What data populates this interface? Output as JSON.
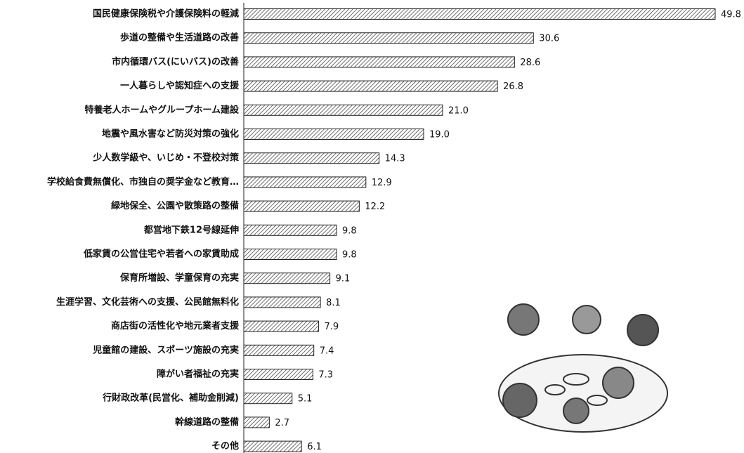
{
  "chart_data": {
    "type": "hbar",
    "categories": [
      "国民健康保険税や介護保険料の軽減",
      "歩道の整備や生活道路の改善",
      "市内循環バス(にいバス)の改善",
      "一人暮らしや認知症への支援",
      "特養老人ホームやグループホーム建設",
      "地震や風水害など防災対策の強化",
      "少人数学級や、いじめ・不登校対策",
      "学校給食費無償化、市独自の奨学金など教育…",
      "緑地保全、公園や散策路の整備",
      "都営地下鉄12号線延伸",
      "低家賃の公営住宅や若者への家賃助成",
      "保育所増設、学童保育の充実",
      "生涯学習、文化芸術への支援、公民館無料化",
      "商店街の活性化や地元業者支援",
      "児童館の建設、スポーツ施設の充実",
      "障がい者福祉の充実",
      "行財政改革(民営化、補助金削減)",
      "幹線道路の整備",
      "その他"
    ],
    "values": [
      49.8,
      30.6,
      28.6,
      26.8,
      21.0,
      19.0,
      14.3,
      12.9,
      12.2,
      9.8,
      9.8,
      9.1,
      8.1,
      7.9,
      7.4,
      7.3,
      5.1,
      2.7,
      6.1
    ],
    "value_labels": [
      "49.8",
      "30.6",
      "28.6",
      "26.8",
      "21.0",
      "19.0",
      "14.3",
      "12.9",
      "12.2",
      "9.8",
      "9.8",
      "9.1",
      "8.1",
      "7.9",
      "7.4",
      "7.3",
      "5.1",
      "2.7",
      "6.1"
    ],
    "color": "#222222"
  }
}
